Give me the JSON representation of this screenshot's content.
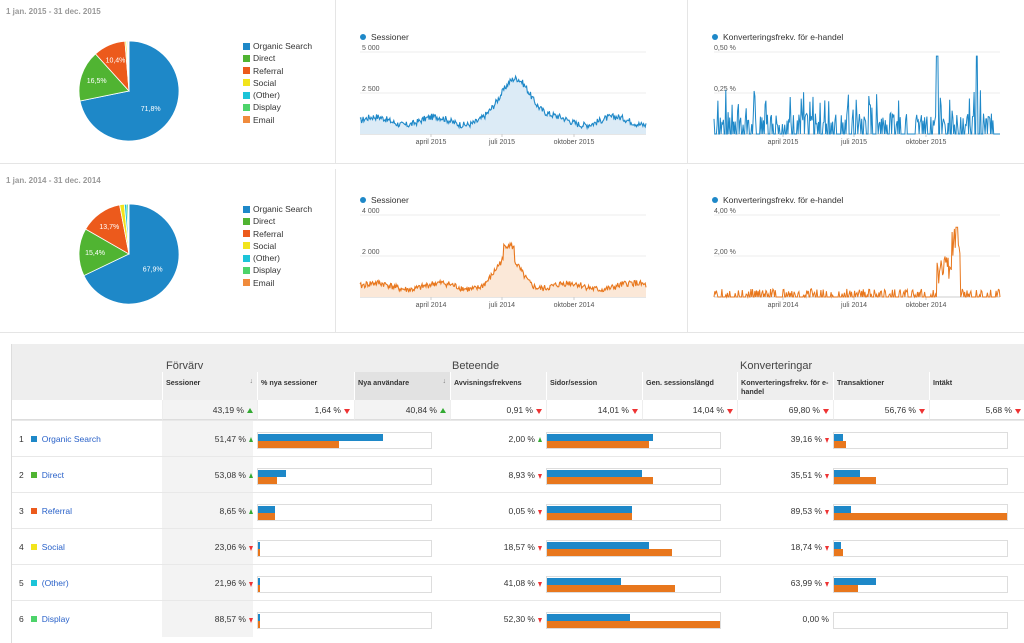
{
  "legend": [
    {
      "name": "Organic Search",
      "color": "#1e88c8"
    },
    {
      "name": "Direct",
      "color": "#50b432"
    },
    {
      "name": "Referral",
      "color": "#ec5a1c"
    },
    {
      "name": "Social",
      "color": "#f2e41c"
    },
    {
      "name": "(Other)",
      "color": "#1cc4d8"
    },
    {
      "name": "Display",
      "color": "#4dd36a"
    },
    {
      "name": "Email",
      "color": "#f08b3c"
    }
  ],
  "panels": [
    {
      "period": "1 jan. 2015 - 31 dec. 2015",
      "pie": {
        "values": [
          71.8,
          16.5,
          10.4,
          0.5,
          0.3,
          0.3,
          0.2
        ],
        "labels": [
          "71,8%",
          "16,5%",
          "10,4%"
        ]
      },
      "sessions": {
        "title": "Sessioner",
        "color": "#1e88c8",
        "fill": "#dcebf6",
        "yticks": [
          "5 000",
          "2 500"
        ],
        "ymax": 5000,
        "xticks": [
          "april 2015",
          "juli 2015",
          "oktober 2015"
        ],
        "shape": "2015"
      },
      "conv": {
        "title": "Konverteringsfrekv. för e-handel",
        "color": "#1e88c8",
        "yticks": [
          "0,50 %",
          "0,25 %"
        ],
        "xticks": [
          "april 2015",
          "juli 2015",
          "oktober 2015"
        ]
      }
    },
    {
      "period": "1 jan. 2014 - 31 dec. 2014",
      "pie": {
        "values": [
          67.9,
          15.4,
          13.7,
          1.5,
          0.8,
          0.5,
          0.2
        ],
        "labels": [
          "67,9%",
          "15,4%",
          "13,7%"
        ]
      },
      "sessions": {
        "title": "Sessioner",
        "color": "#e8771d",
        "fill": "#fbe8d8",
        "yticks": [
          "4 000",
          "2 000"
        ],
        "ymax": 4000,
        "xticks": [
          "april 2014",
          "juli 2014",
          "oktober 2014"
        ],
        "shape": "2014"
      },
      "conv": {
        "title": "Konverteringsfrekv. för e-handel",
        "color": "#e8771d",
        "yticks": [
          "4,00 %",
          "2,00 %"
        ],
        "xticks": [
          "april 2014",
          "juli 2014",
          "oktober 2014"
        ]
      }
    }
  ],
  "table": {
    "sections": [
      "Förvärv",
      "Beteende",
      "Konverteringar"
    ],
    "columns": [
      {
        "label": "Sessioner",
        "sort": "↓",
        "total": "43,19 %",
        "dir": "up"
      },
      {
        "label": "% nya sessioner",
        "total": "1,64 %",
        "dir": "down"
      },
      {
        "label": "Nya användare",
        "sort": "↓",
        "total": "40,84 %",
        "dir": "up"
      },
      {
        "label": "Avvisningsfrekvens",
        "total": "0,91 %",
        "dir": "down"
      },
      {
        "label": "Sidor/session",
        "total": "14,01 %",
        "dir": "down"
      },
      {
        "label": "Gen. sessionslängd",
        "total": "14,04 %",
        "dir": "down"
      },
      {
        "label": "Konverteringsfrekv. för e-handel",
        "total": "69,80 %",
        "dir": "down"
      },
      {
        "label": "Transaktioner",
        "total": "56,76 %",
        "dir": "down"
      },
      {
        "label": "Intäkt",
        "total": "5,68 %",
        "dir": "down"
      }
    ],
    "rows": [
      {
        "num": "1",
        "name": "Organic Search",
        "color": "#1e88c8",
        "s": "51,47 %",
        "sdir": "up",
        "sb": [
          0.72,
          0.47
        ],
        "a": "2,00 %",
        "adir": "up",
        "ab": [
          0.61,
          0.59
        ],
        "c": "39,16 %",
        "cdir": "down",
        "cb": [
          0.05,
          0.07
        ]
      },
      {
        "num": "2",
        "name": "Direct",
        "color": "#50b432",
        "s": "53,08 %",
        "sdir": "up",
        "sb": [
          0.16,
          0.11
        ],
        "a": "8,93 %",
        "adir": "down",
        "ab": [
          0.55,
          0.61
        ],
        "c": "35,51 %",
        "cdir": "down",
        "cb": [
          0.15,
          0.24
        ]
      },
      {
        "num": "3",
        "name": "Referral",
        "color": "#ec5a1c",
        "s": "8,65 %",
        "sdir": "up",
        "sb": [
          0.1,
          0.1
        ],
        "a": "0,05 %",
        "adir": "down",
        "ab": [
          0.49,
          0.49
        ],
        "c": "89,53 %",
        "cdir": "down",
        "cb": [
          0.1,
          1.0
        ]
      },
      {
        "num": "4",
        "name": "Social",
        "color": "#f2e41c",
        "s": "23,06 %",
        "sdir": "down",
        "sb": [
          0.01,
          0.01
        ],
        "a": "18,57 %",
        "adir": "down",
        "ab": [
          0.59,
          0.72
        ],
        "c": "18,74 %",
        "cdir": "down",
        "cb": [
          0.04,
          0.05
        ]
      },
      {
        "num": "5",
        "name": "(Other)",
        "color": "#1cc4d8",
        "s": "21,96 %",
        "sdir": "down",
        "sb": [
          0.01,
          0.01
        ],
        "a": "41,08 %",
        "adir": "down",
        "ab": [
          0.43,
          0.74
        ],
        "c": "63,99 %",
        "cdir": "down",
        "cb": [
          0.24,
          0.14
        ]
      },
      {
        "num": "6",
        "name": "Display",
        "color": "#4dd36a",
        "s": "88,57 %",
        "sdir": "down",
        "sb": [
          0.01,
          0.01
        ],
        "a": "52,30 %",
        "adir": "down",
        "ab": [
          0.48,
          1.0
        ],
        "c": "0,00 %",
        "cdir": "",
        "cb": [
          0,
          0
        ]
      }
    ]
  }
}
